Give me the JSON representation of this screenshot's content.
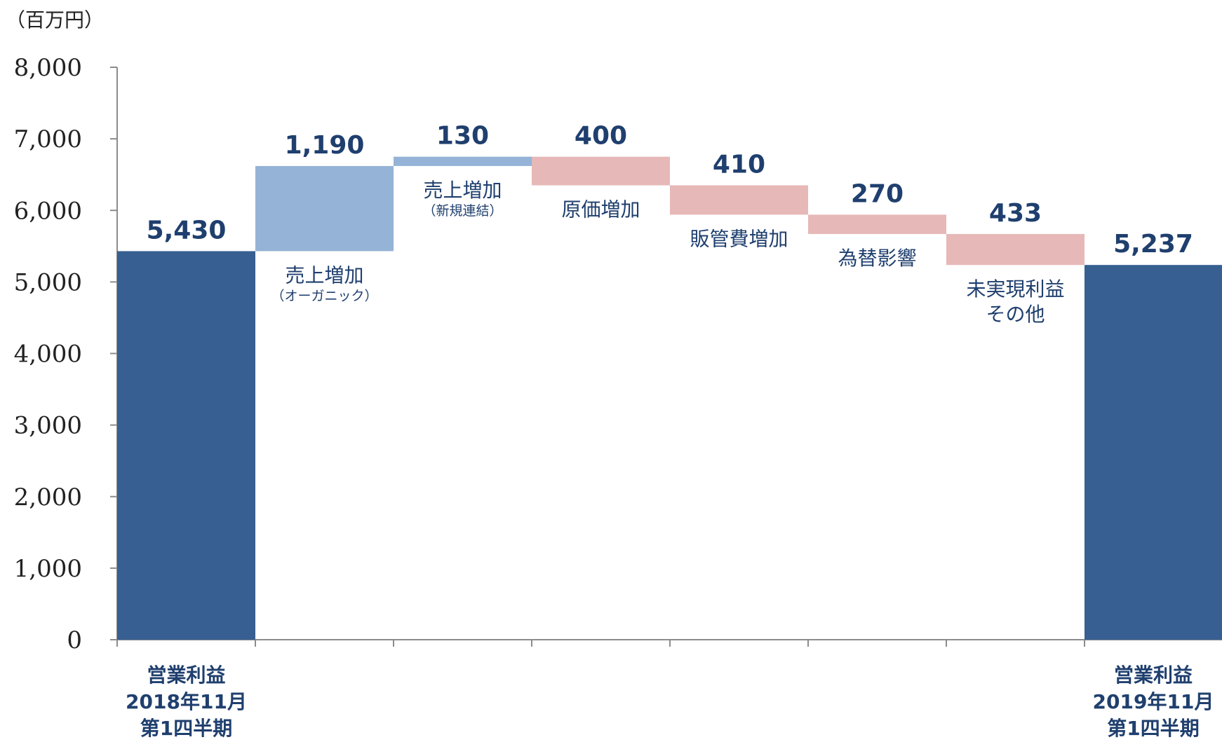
{
  "chart_data": {
    "type": "bar",
    "subtype": "waterfall",
    "unit_label": "（百万円）",
    "ylim": [
      0,
      8000
    ],
    "yticks": [
      "0",
      "1,000",
      "2,000",
      "3,000",
      "4,000",
      "5,000",
      "6,000",
      "7,000",
      "8,000"
    ],
    "colors": {
      "total": "#375f91",
      "increase": "#95b3d7",
      "decrease": "#e6b8b7",
      "axis": "#8c8c8c",
      "text": "#1f3f6e"
    },
    "steps": [
      {
        "kind": "total",
        "value": 5430,
        "label": "5,430",
        "category": [
          "営業利益",
          "2018年11月",
          "第1四半期"
        ]
      },
      {
        "kind": "increase",
        "value": 1190,
        "label": "1,190",
        "category": [
          "売上増加"
        ],
        "sub": "（オーガニック）"
      },
      {
        "kind": "increase",
        "value": 130,
        "label": "130",
        "category": [
          "売上増加"
        ],
        "sub": "（新規連結）"
      },
      {
        "kind": "decrease",
        "value": 400,
        "label": "400",
        "category": [
          "原価増加"
        ]
      },
      {
        "kind": "decrease",
        "value": 410,
        "label": "410",
        "category": [
          "販管費増加"
        ]
      },
      {
        "kind": "decrease",
        "value": 270,
        "label": "270",
        "category": [
          "為替影響"
        ]
      },
      {
        "kind": "decrease",
        "value": 433,
        "label": "433",
        "category": [
          "未実現利益",
          "その他"
        ]
      },
      {
        "kind": "total",
        "value": 5237,
        "label": "5,237",
        "category": [
          "営業利益",
          "2019年11月",
          "第1四半期"
        ]
      }
    ]
  }
}
